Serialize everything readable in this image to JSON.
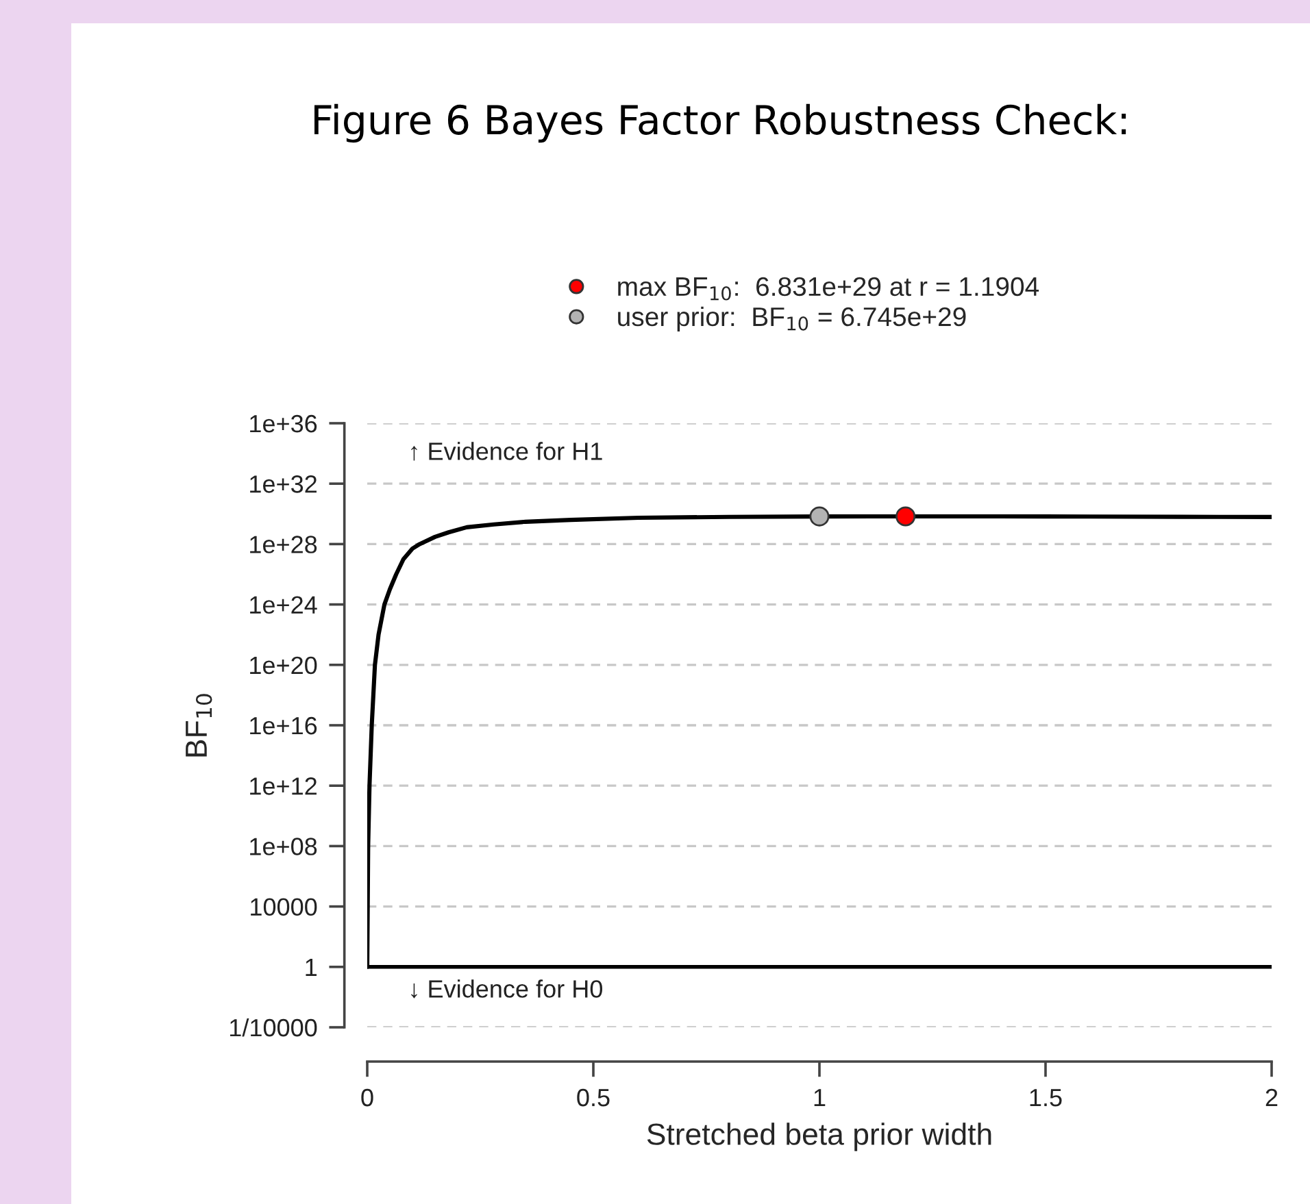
{
  "chart_data": {
    "type": "line",
    "title": "Figure 6 Bayes Factor Robustness Check:",
    "xlabel": "Stretched beta prior width",
    "ylabel": "BF$_{10}$",
    "series": [
      {
        "marker": "none",
        "color": "#000000",
        "x": [
          0,
          0.0005,
          0.001,
          0.002,
          0.005,
          0.01,
          0.017,
          0.025,
          0.038,
          0.05,
          0.064,
          0.08,
          0.1,
          0.116,
          0.15,
          0.18,
          0.22,
          0.28,
          0.35,
          0.45,
          0.6,
          0.8,
          1.0,
          1.19,
          1.4,
          1.6,
          1.8,
          2.0
        ],
        "values": [
          1,
          100,
          10000,
          100000000.0,
          1000000000000.0,
          1e+16,
          1e+20,
          1e+22,
          1e+24,
          1e+25,
          1e+26,
          1e+27,
          5e+27,
          1e+28,
          3e+28,
          6e+28,
          1.3e+29,
          2e+29,
          3e+29,
          4e+29,
          5.5e+29,
          6.3e+29,
          6.745e+29,
          6.831e+29,
          6.75e+29,
          6.6e+29,
          6.4e+29,
          6.2e+29
        ]
      },
      {
        "type": "scatter",
        "marker": "circle",
        "name": "max BF$_{10}$:  6.831e+29 at r = 1.1904",
        "color": "#ff0000",
        "x": [
          1.1904
        ],
        "values": [
          6.831e+29
        ]
      },
      {
        "type": "scatter",
        "marker": "circle",
        "name": "user prior:  BF$_{10}$ = 6.745e+29",
        "color": "#b3b3b3",
        "x": [
          1
        ],
        "values": [
          6.745e+29
        ]
      }
    ],
    "annotations": [
      "↑ Evidence for H1",
      "↓ Evidence for H0"
    ],
    "ref_lines": [
      {
        "axis": "y",
        "value": 1,
        "color": "#000000"
      }
    ],
    "log": "y",
    "xlim": [
      0,
      2
    ],
    "xticks": [
      0,
      0.5,
      1,
      1.5,
      2
    ],
    "ylim": [
      0.0001,
      1e+36
    ],
    "yticks": [
      {
        "value": 0.0001,
        "label": "1/10000"
      },
      1,
      10000,
      {
        "value": 100000000.0,
        "label": "1e+08"
      },
      {
        "value": 1000000000000.0,
        "label": "1e+12"
      },
      {
        "value": 1e+16,
        "label": "1e+16"
      },
      {
        "value": 1e+20,
        "label": "1e+20"
      },
      {
        "value": 1e+24,
        "label": "1e+24"
      },
      {
        "value": 1e+28,
        "label": "1e+28"
      },
      {
        "value": 1e+32,
        "label": "1e+32"
      },
      {
        "value": 1e+36,
        "label": "1e+36"
      }
    ],
    "grid": "y",
    "legend": "top"
  }
}
